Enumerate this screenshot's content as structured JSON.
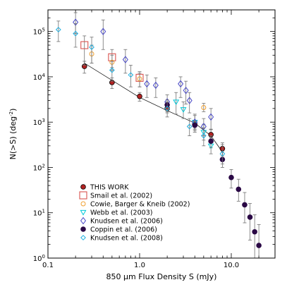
{
  "chart_data": {
    "type": "scatter",
    "xlabel": "850 μm Flux Density S (mJy)",
    "ylabel_main": "N(>S) (deg",
    "ylabel_sup": "-2",
    "ylabel_close": ")",
    "x_scale": "log",
    "y_scale": "log",
    "xlim": [
      0.1,
      30
    ],
    "ylim": [
      1,
      300000
    ],
    "x_ticks": [
      {
        "value": 0.1,
        "label": "0.1"
      },
      {
        "value": 1,
        "label": "1.0"
      },
      {
        "value": 10,
        "label": "10.0"
      }
    ],
    "y_ticks": [
      {
        "value": 1,
        "base": "10",
        "exp": "0"
      },
      {
        "value": 10,
        "base": "10",
        "exp": "1"
      },
      {
        "value": 100,
        "base": "10",
        "exp": "2"
      },
      {
        "value": 1000,
        "base": "10",
        "exp": "3"
      },
      {
        "value": 10000,
        "base": "10",
        "exp": "4"
      },
      {
        "value": 100000,
        "base": "10",
        "exp": "5"
      }
    ],
    "legend_position": "bottom-left",
    "fit_line": {
      "points": [
        [
          0.25,
          20000
        ],
        [
          1.0,
          3500
        ],
        [
          2.0,
          1800
        ],
        [
          4.0,
          950
        ],
        [
          6.0,
          500
        ],
        [
          8.0,
          220
        ]
      ]
    },
    "series": [
      {
        "name": "THIS WORK",
        "marker": "filled-circle",
        "color": "#b22222",
        "edge": "#000000",
        "points": [
          {
            "x": 0.25,
            "y": 17000,
            "lo": 12000,
            "hi": 22000
          },
          {
            "x": 0.5,
            "y": 7500,
            "lo": 5500,
            "hi": 9500
          },
          {
            "x": 1.0,
            "y": 3700,
            "lo": 2900,
            "hi": 4500
          },
          {
            "x": 2.0,
            "y": 2000,
            "lo": 1600,
            "hi": 2400
          },
          {
            "x": 4.0,
            "y": 900,
            "lo": 700,
            "hi": 1100
          },
          {
            "x": 6.0,
            "y": 530,
            "lo": 400,
            "hi": 680
          },
          {
            "x": 8.0,
            "y": 260,
            "lo": 180,
            "hi": 350
          }
        ]
      },
      {
        "name": "Smail et al. (2002)",
        "marker": "open-square",
        "color": "#d9534f",
        "points": [
          {
            "x": 0.25,
            "y": 50000,
            "lo": 18000,
            "hi": 80000
          },
          {
            "x": 0.5,
            "y": 27000,
            "lo": 16000,
            "hi": 40000
          },
          {
            "x": 1.0,
            "y": 9500,
            "lo": 6000,
            "hi": 13000
          }
        ]
      },
      {
        "name": "Cowie, Barger & Kneib (2002)",
        "marker": "open-circle",
        "color": "#f0a030",
        "points": [
          {
            "x": 0.3,
            "y": 32000,
            "lo": 20000,
            "hi": 50000
          },
          {
            "x": 0.5,
            "y": 21000,
            "lo": 14000,
            "hi": 30000
          },
          {
            "x": 1.0,
            "y": 9000,
            "lo": 6000,
            "hi": 12000
          },
          {
            "x": 5.0,
            "y": 2100,
            "lo": 1700,
            "hi": 2600
          }
        ]
      },
      {
        "name": "Webb et al. (2003)",
        "marker": "open-triangle-down",
        "color": "#00c8d8",
        "points": [
          {
            "x": 2.5,
            "y": 2800,
            "lo": 1500,
            "hi": 4500
          },
          {
            "x": 3.0,
            "y": 1900,
            "lo": 1200,
            "hi": 2800
          },
          {
            "x": 4.0,
            "y": 1000,
            "lo": 700,
            "hi": 1400
          },
          {
            "x": 5.0,
            "y": 600,
            "lo": 400,
            "hi": 900
          },
          {
            "x": 6.0,
            "y": 300,
            "lo": 200,
            "hi": 450
          }
        ]
      },
      {
        "name": "Knudsen et al. (2006)",
        "marker": "open-diamond",
        "color": "#4848c8",
        "points": [
          {
            "x": 0.2,
            "y": 160000,
            "lo": 90000,
            "hi": 260000
          },
          {
            "x": 0.4,
            "y": 100000,
            "lo": 40000,
            "hi": 180000
          },
          {
            "x": 0.7,
            "y": 24000,
            "lo": 12000,
            "hi": 40000
          },
          {
            "x": 1.2,
            "y": 7000,
            "lo": 3500,
            "hi": 11000
          },
          {
            "x": 1.5,
            "y": 6500,
            "lo": 3500,
            "hi": 9500
          },
          {
            "x": 2.0,
            "y": 2800,
            "lo": 1700,
            "hi": 4000
          },
          {
            "x": 2.8,
            "y": 7000,
            "lo": 3500,
            "hi": 10000
          },
          {
            "x": 3.2,
            "y": 5000,
            "lo": 2500,
            "hi": 8000
          },
          {
            "x": 3.5,
            "y": 3000,
            "lo": 1600,
            "hi": 4500
          },
          {
            "x": 4.0,
            "y": 1000,
            "lo": 600,
            "hi": 1500
          },
          {
            "x": 5.0,
            "y": 800,
            "lo": 500,
            "hi": 1200
          },
          {
            "x": 6.0,
            "y": 1300,
            "lo": 700,
            "hi": 2000
          }
        ]
      },
      {
        "name": "Coppin et al. (2006)",
        "marker": "filled-circle",
        "color": "#2a0845",
        "points": [
          {
            "x": 2.0,
            "y": 2400,
            "lo": 1800,
            "hi": 3100
          },
          {
            "x": 4.0,
            "y": 850,
            "lo": 650,
            "hi": 1050
          },
          {
            "x": 6.0,
            "y": 380,
            "lo": 270,
            "hi": 500
          },
          {
            "x": 8.0,
            "y": 150,
            "lo": 100,
            "hi": 220
          },
          {
            "x": 10.0,
            "y": 60,
            "lo": 35,
            "hi": 90
          },
          {
            "x": 12.0,
            "y": 33,
            "lo": 18,
            "hi": 55
          },
          {
            "x": 14.0,
            "y": 15,
            "lo": 6,
            "hi": 28
          },
          {
            "x": 16.0,
            "y": 8,
            "lo": 2.5,
            "hi": 16
          },
          {
            "x": 18.0,
            "y": 3.8,
            "lo": 1,
            "hi": 9
          },
          {
            "x": 20.0,
            "y": 1.9,
            "lo": 1,
            "hi": 5.5
          }
        ]
      },
      {
        "name": "Knudsen et al. (2008)",
        "marker": "open-diamond-small",
        "color": "#20b0e0",
        "points": [
          {
            "x": 0.13,
            "y": 110000,
            "lo": 60000,
            "hi": 170000
          },
          {
            "x": 0.2,
            "y": 90000,
            "lo": 45000,
            "hi": 150000
          },
          {
            "x": 0.3,
            "y": 45000,
            "lo": 20000,
            "hi": 75000
          },
          {
            "x": 0.5,
            "y": 14000,
            "lo": 8000,
            "hi": 22000
          },
          {
            "x": 0.8,
            "y": 11000,
            "lo": 6000,
            "hi": 18000
          },
          {
            "x": 2.0,
            "y": 2000,
            "lo": 1300,
            "hi": 2800
          },
          {
            "x": 3.5,
            "y": 800,
            "lo": 500,
            "hi": 1200
          },
          {
            "x": 5.0,
            "y": 500,
            "lo": 300,
            "hi": 750
          },
          {
            "x": 8.0,
            "y": 200,
            "lo": 120,
            "hi": 320
          }
        ]
      }
    ]
  }
}
